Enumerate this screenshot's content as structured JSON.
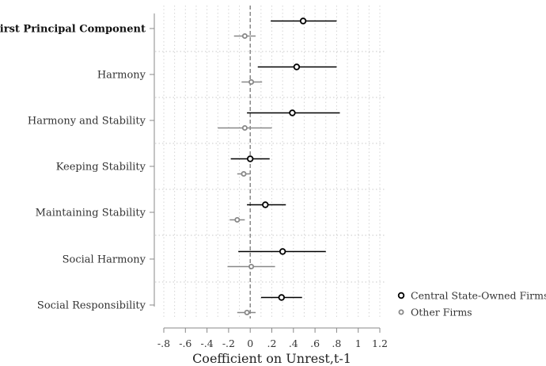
{
  "chart_data": {
    "type": "scatter",
    "subtype": "coefficient-plot",
    "xlabel": "Coefficient on Unrest,t-1",
    "xlim": [
      -0.8,
      1.2
    ],
    "xticks": [
      -0.8,
      -0.6,
      -0.4,
      -0.2,
      0,
      0.2,
      0.4,
      0.6,
      0.8,
      1,
      1.2
    ],
    "xtick_labels": [
      "-.8",
      "-.6",
      "-.4",
      "-.2",
      "0",
      ".2",
      ".4",
      ".6",
      ".8",
      "1",
      "1.2"
    ],
    "reference_line": 0,
    "grid": true,
    "legend_position": "right",
    "categories": [
      "First Principal Component",
      "Harmony",
      "Harmony and Stability",
      "Keeping Stability",
      "Maintaining Stability",
      "Social Harmony",
      "Social Responsibility"
    ],
    "bold_categories": [
      "First Principal Component"
    ],
    "series": [
      {
        "name": "Central State-Owned Firms",
        "color": "#000000",
        "estimates": [
          0.49,
          0.43,
          0.39,
          0.0,
          0.14,
          0.3,
          0.29
        ],
        "ci_low": [
          0.19,
          0.07,
          -0.03,
          -0.18,
          -0.03,
          -0.11,
          0.1
        ],
        "ci_high": [
          0.8,
          0.8,
          0.83,
          0.18,
          0.33,
          0.7,
          0.48
        ]
      },
      {
        "name": "Other Firms",
        "color": "#888888",
        "estimates": [
          -0.05,
          0.01,
          -0.05,
          -0.06,
          -0.12,
          0.01,
          -0.03
        ],
        "ci_low": [
          -0.15,
          -0.08,
          -0.3,
          -0.12,
          -0.19,
          -0.21,
          -0.12
        ],
        "ci_high": [
          0.05,
          0.11,
          0.2,
          0.0,
          -0.05,
          0.23,
          0.05
        ]
      }
    ]
  }
}
